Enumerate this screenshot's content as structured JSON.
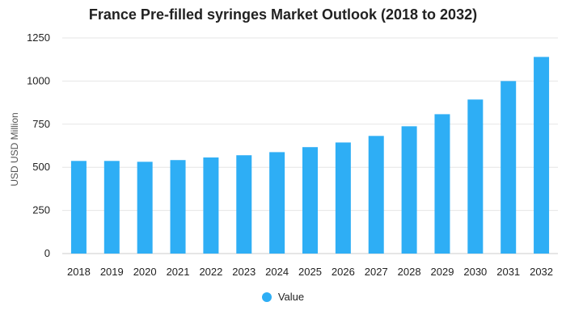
{
  "chart_data": {
    "type": "bar",
    "title": "France Pre-filled syringes Market Outlook (2018 to 2032)",
    "ylabel": "USD USD Million",
    "xlabel": "",
    "categories": [
      "2018",
      "2019",
      "2020",
      "2021",
      "2022",
      "2023",
      "2024",
      "2025",
      "2026",
      "2027",
      "2028",
      "2029",
      "2030",
      "2031",
      "2032"
    ],
    "series": [
      {
        "name": "Value",
        "color": "#2eaef5",
        "values": [
          537,
          537,
          532,
          542,
          557,
          570,
          588,
          617,
          644,
          682,
          738,
          808,
          893,
          1000,
          1140
        ]
      }
    ],
    "ylim": [
      0,
      1250
    ],
    "yticks": [
      0,
      250,
      500,
      750,
      1000,
      1250
    ],
    "grid": true,
    "legend_position": "bottom-center"
  }
}
